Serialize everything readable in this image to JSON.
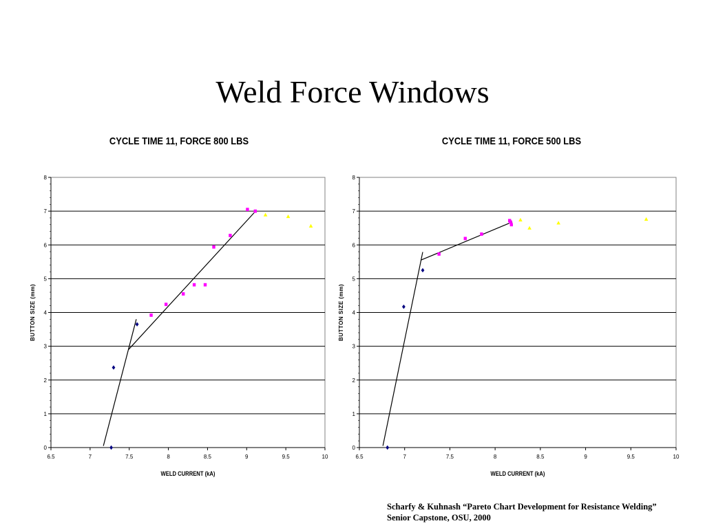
{
  "slide": {
    "title": "Weld Force Windows",
    "citation": {
      "line1": "Scharfy & Kuhnash “Pareto Chart Development for Resistance  Welding”",
      "line2": "Senior Capstone, OSU, 2000"
    }
  },
  "chart_data": [
    {
      "type": "scatter",
      "title": "CYCLE TIME 11, FORCE 800 LBS",
      "xlabel": "WELD CURRENT (kA)",
      "ylabel": "BUTTON SIZE (mm)",
      "xlim": [
        6.5,
        10
      ],
      "ylim": [
        0,
        8
      ],
      "xticks": [
        "6.5",
        "7",
        "7.5",
        "8",
        "8.5",
        "9",
        "9.5",
        "10"
      ],
      "yticks": [
        "0",
        "1",
        "2",
        "3",
        "4",
        "5",
        "6",
        "7",
        "8"
      ],
      "grid": "horizontal",
      "legend": "none",
      "series": [
        {
          "marker": "diamond",
          "color": "#000080",
          "points": [
            [
              7.27,
              0.0
            ],
            [
              7.3,
              2.37
            ],
            [
              7.6,
              3.65
            ]
          ]
        },
        {
          "marker": "square",
          "color": "#ff00ff",
          "points": [
            [
              7.78,
              3.92
            ],
            [
              7.97,
              4.24
            ],
            [
              8.19,
              4.55
            ],
            [
              8.33,
              4.82
            ],
            [
              8.47,
              4.82
            ],
            [
              8.58,
              5.94
            ],
            [
              8.79,
              6.28
            ],
            [
              9.01,
              7.05
            ],
            [
              9.11,
              7.0
            ]
          ]
        },
        {
          "marker": "triangle",
          "color": "#ffff00",
          "points": [
            [
              9.24,
              6.89
            ],
            [
              9.53,
              6.84
            ],
            [
              9.82,
              6.56
            ]
          ]
        }
      ],
      "fit_lines": [
        [
          [
            7.17,
            0.05
          ],
          [
            7.59,
            3.8
          ]
        ],
        [
          [
            7.49,
            2.9
          ],
          [
            9.11,
            6.99
          ]
        ]
      ]
    },
    {
      "type": "scatter",
      "title": "CYCLE TIME 11, FORCE 500 LBS",
      "xlabel": "WELD CURRENT (kA)",
      "ylabel": "BUTTON SIZE (mm)",
      "xlim": [
        6.5,
        10
      ],
      "ylim": [
        0,
        8
      ],
      "xticks": [
        "6.5",
        "7",
        "7.5",
        "8",
        "8.5",
        "9",
        "9.5",
        "10"
      ],
      "yticks": [
        "0",
        "1",
        "2",
        "3",
        "4",
        "5",
        "6",
        "7",
        "8"
      ],
      "grid": "horizontal",
      "legend": "none",
      "series": [
        {
          "marker": "diamond",
          "color": "#000080",
          "points": [
            [
              6.81,
              0.0
            ],
            [
              6.99,
              4.17
            ],
            [
              7.2,
              5.25
            ]
          ]
        },
        {
          "marker": "square",
          "color": "#ff00ff",
          "points": [
            [
              7.38,
              5.73
            ],
            [
              7.67,
              6.19
            ],
            [
              7.85,
              6.32
            ],
            [
              8.16,
              6.72
            ],
            [
              8.17,
              6.68
            ],
            [
              8.18,
              6.6
            ]
          ]
        },
        {
          "marker": "triangle",
          "color": "#ffff00",
          "points": [
            [
              8.28,
              6.74
            ],
            [
              8.38,
              6.5
            ],
            [
              8.7,
              6.65
            ],
            [
              9.67,
              6.76
            ]
          ]
        }
      ],
      "fit_lines": [
        [
          [
            6.76,
            0.05
          ],
          [
            7.2,
            5.79
          ]
        ],
        [
          [
            7.18,
            5.55
          ],
          [
            8.19,
            6.68
          ]
        ]
      ]
    }
  ]
}
